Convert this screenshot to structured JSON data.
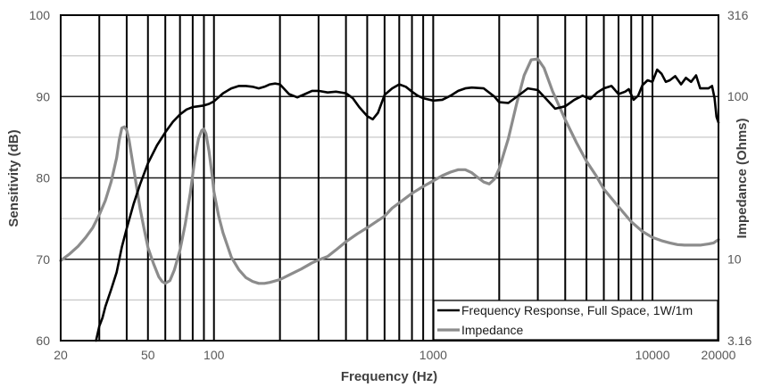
{
  "chart_data": {
    "type": "line",
    "title": "",
    "xlabel": "Frequency (Hz)",
    "ylabel": "Sensitivity (dB)",
    "y2label": "Impedance (Ohms)",
    "xscale": "log",
    "xlim": [
      20,
      20000
    ],
    "ylim": [
      60,
      100
    ],
    "y2lim": [
      3.16,
      316
    ],
    "y2scale": "log",
    "x_ticks": [
      20,
      50,
      100,
      1000,
      10000,
      20000
    ],
    "x_tick_labels": [
      "20",
      "50",
      "100",
      "1000",
      "10000",
      "20000"
    ],
    "y_ticks": [
      60,
      70,
      80,
      90,
      100
    ],
    "y_tick_labels": [
      "60",
      "70",
      "80",
      "90",
      "100"
    ],
    "y2_ticks": [
      3.16,
      10,
      100,
      316
    ],
    "y2_tick_labels": [
      "3.16",
      "10",
      "100",
      "316"
    ],
    "major_vertical_grid": [
      30,
      40,
      50,
      60,
      70,
      80,
      90,
      100,
      200,
      300,
      400,
      500,
      600,
      700,
      800,
      900,
      1000,
      2000,
      3000,
      4000,
      5000,
      6000,
      7000,
      8000,
      9000,
      10000
    ],
    "major_horizontal_grid": [
      70,
      80,
      90
    ],
    "minor_horizontal_grid": [
      65,
      75,
      85,
      95
    ],
    "grid": true,
    "legend_position": "lower right",
    "series": [
      {
        "name": "Frequency Response, Full Space, 1W/1m",
        "axis": "left",
        "color": "#000000",
        "x": [
          29,
          30,
          31,
          32,
          34,
          36,
          38,
          40,
          43,
          46,
          50,
          55,
          60,
          65,
          70,
          75,
          80,
          85,
          90,
          95,
          100,
          110,
          120,
          130,
          140,
          150,
          160,
          170,
          180,
          190,
          200,
          220,
          240,
          260,
          280,
          300,
          330,
          360,
          400,
          430,
          460,
          500,
          530,
          560,
          600,
          650,
          700,
          750,
          800,
          850,
          900,
          1000,
          1100,
          1200,
          1300,
          1400,
          1500,
          1700,
          1900,
          2000,
          2200,
          2500,
          2700,
          3000,
          3300,
          3600,
          4000,
          4400,
          4800,
          5200,
          5600,
          6000,
          6500,
          7000,
          7500,
          7800,
          8200,
          8600,
          9000,
          9500,
          10000,
          10500,
          11000,
          11500,
          12000,
          12700,
          13500,
          14200,
          15000,
          15800,
          16500,
          17300,
          18000,
          18700,
          19200,
          19600,
          20000
        ],
        "y": [
          60.0,
          61.8,
          62.8,
          64.2,
          66.3,
          68.4,
          71.5,
          73.8,
          76.8,
          79.2,
          81.8,
          84.0,
          85.6,
          86.9,
          87.8,
          88.4,
          88.7,
          88.8,
          88.9,
          89.1,
          89.4,
          90.4,
          91.0,
          91.3,
          91.3,
          91.2,
          91.0,
          91.2,
          91.5,
          91.6,
          91.5,
          90.3,
          89.9,
          90.3,
          90.7,
          90.7,
          90.5,
          90.6,
          90.4,
          89.8,
          88.7,
          87.6,
          87.2,
          88.0,
          90.2,
          91.0,
          91.5,
          91.2,
          90.6,
          90.1,
          89.8,
          89.5,
          89.6,
          90.1,
          90.7,
          91.0,
          91.1,
          91.0,
          90.0,
          89.3,
          89.2,
          90.3,
          91.0,
          90.8,
          89.6,
          88.5,
          88.8,
          89.6,
          90.1,
          89.7,
          90.5,
          91.0,
          91.3,
          90.3,
          90.6,
          90.9,
          89.6,
          90.1,
          91.4,
          92.0,
          91.8,
          93.3,
          92.8,
          91.8,
          92.0,
          92.5,
          91.5,
          92.3,
          91.8,
          92.6,
          91.0,
          91.0,
          91.0,
          91.3,
          89.8,
          87.5,
          86.8
        ]
      },
      {
        "name": "Impedance",
        "axis": "right",
        "color": "#8c8c8c",
        "x": [
          20,
          22,
          24,
          26,
          28,
          30,
          32,
          34,
          36,
          37,
          38,
          39,
          40,
          41,
          42,
          44,
          46,
          48,
          50,
          53,
          56,
          58,
          60,
          63,
          66,
          70,
          74,
          78,
          82,
          85,
          88,
          90,
          92,
          95,
          98,
          100,
          105,
          110,
          120,
          130,
          140,
          150,
          160,
          170,
          180,
          200,
          220,
          250,
          280,
          300,
          330,
          360,
          400,
          450,
          500,
          550,
          600,
          650,
          700,
          800,
          900,
          1000,
          1100,
          1200,
          1300,
          1400,
          1500,
          1600,
          1700,
          1800,
          1900,
          2000,
          2200,
          2400,
          2600,
          2800,
          3000,
          3200,
          3500,
          4000,
          4500,
          5000,
          5500,
          6000,
          7000,
          8000,
          9000,
          10000,
          11000,
          12000,
          13000,
          14000,
          15000,
          16500,
          18000,
          19000,
          20000
        ],
        "y": [
          9.8,
          10.8,
          12.0,
          13.6,
          15.6,
          18.8,
          23.0,
          30.0,
          42.0,
          54.0,
          64.0,
          65.0,
          62.0,
          54.0,
          44.0,
          30.0,
          20.6,
          15.4,
          11.8,
          9.4,
          7.8,
          7.3,
          7.1,
          7.4,
          8.6,
          11.4,
          16.5,
          25.5,
          42.0,
          55.0,
          62.0,
          63.0,
          59.0,
          46.0,
          33.0,
          26.0,
          18.5,
          14.5,
          10.3,
          8.6,
          7.7,
          7.3,
          7.1,
          7.1,
          7.2,
          7.5,
          8.0,
          8.7,
          9.5,
          9.9,
          10.4,
          11.4,
          12.8,
          14.3,
          15.6,
          17.0,
          18.4,
          20.6,
          22.2,
          25.4,
          28.0,
          30.3,
          32.6,
          34.3,
          35.5,
          35.5,
          34.0,
          31.7,
          29.8,
          29.0,
          31.0,
          36.0,
          55.0,
          90.0,
          135.0,
          168.0,
          170.0,
          150.0,
          108.0,
          72.0,
          52.0,
          40.0,
          33.0,
          27.0,
          21.0,
          17.0,
          14.8,
          13.6,
          13.0,
          12.6,
          12.3,
          12.2,
          12.2,
          12.2,
          12.4,
          12.6,
          13.2
        ]
      }
    ]
  }
}
